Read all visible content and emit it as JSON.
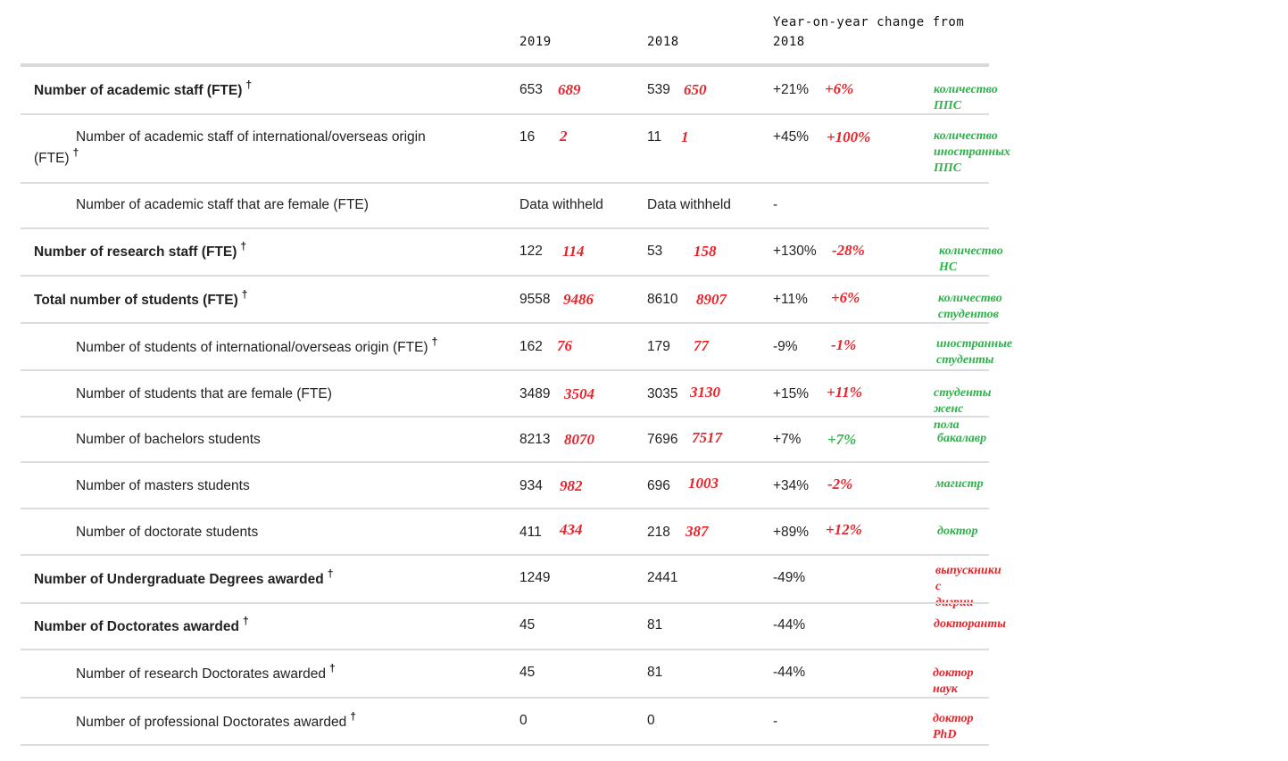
{
  "header": {
    "col_2019": "2019",
    "col_2018": "2018",
    "col_yoy": "Year-on-year change from 2018"
  },
  "dagger": "†",
  "rows": [
    {
      "label": "Number of academic staff (FTE)",
      "v2019": "653",
      "r2019": "689",
      "v2018": "539",
      "r2018": "650",
      "yoy": "+21%",
      "ryoy": "+6%",
      "note": "количество ППС"
    },
    {
      "label": "Number of academic staff of international/overseas origin (FTE)",
      "v2019": "16",
      "r2019": "2",
      "v2018": "11",
      "r2018": "1",
      "yoy": "+45%",
      "ryoy": "+100%",
      "note_line1": "количество",
      "note_line2": "иностранных ППС"
    },
    {
      "label": "Number of academic staff that are female (FTE)",
      "v2019": "Data withheld",
      "v2018": "Data withheld",
      "yoy": "-"
    },
    {
      "label": "Number of research staff (FTE)",
      "v2019": "122",
      "r2019": "114",
      "v2018": "53",
      "r2018": "158",
      "yoy": "+130%",
      "ryoy": "-28%",
      "note": "количество НС"
    },
    {
      "label": "Total number of students (FTE)",
      "v2019": "9558",
      "r2019": "9486",
      "v2018": "8610",
      "r2018": "8907",
      "yoy": "+11%",
      "ryoy": "+6%",
      "note": "количество студентов"
    },
    {
      "label": "Number of students of international/overseas origin (FTE)",
      "v2019": "162",
      "r2019": "76",
      "v2018": "179",
      "r2018": "77",
      "yoy": "-9%",
      "ryoy": "-1%",
      "note": "иностранные студенты"
    },
    {
      "label": "Number of students that are female (FTE)",
      "v2019": "3489",
      "r2019": "3504",
      "v2018": "3035",
      "r2018": "3130",
      "yoy": "+15%",
      "ryoy": "+11%",
      "note": "студенты женс пола"
    },
    {
      "label": "Number of bachelors students",
      "v2019": "8213",
      "r2019": "8070",
      "v2018": "7696",
      "r2018": "7517",
      "yoy": "+7%",
      "ryoy": "+7%",
      "note": "бакалавр"
    },
    {
      "label": "Number of masters students",
      "v2019": "934",
      "r2019": "982",
      "v2018": "696",
      "r2018": "1003",
      "yoy": "+34%",
      "ryoy": "-2%",
      "note": "магистр"
    },
    {
      "label": "Number of doctorate students",
      "v2019": "411",
      "r2019": "434",
      "v2018": "218",
      "r2018": "387",
      "yoy": "+89%",
      "ryoy": "+12%",
      "note": "доктор"
    },
    {
      "label": "Number of Undergraduate Degrees awarded",
      "v2019": "1249",
      "v2018": "2441",
      "yoy": "-49%",
      "note_line1": "выпускники с",
      "note_line2": "дигрии"
    },
    {
      "label": "Number of Doctorates awarded",
      "v2019": "45",
      "v2018": "81",
      "yoy": "-44%",
      "note": "докторанты"
    },
    {
      "label": "Number of research Doctorates awarded",
      "v2019": "45",
      "v2018": "81",
      "yoy": "-44%",
      "note": "доктор наук"
    },
    {
      "label": "Number of professional Doctorates awarded",
      "v2019": "0",
      "v2018": "0",
      "yoy": "-",
      "note": "доктор PhD"
    }
  ]
}
